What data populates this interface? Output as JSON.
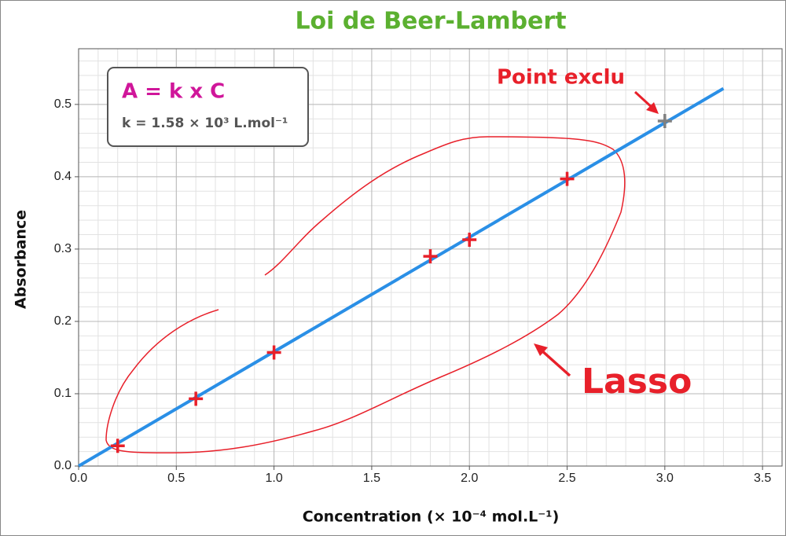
{
  "chart_data": {
    "type": "scatter",
    "title": "Loi de Beer-Lambert",
    "x_label": "Concentration (× 10⁻⁴ mol.L⁻¹)",
    "y_label": "Absorbance",
    "xlim": [
      0,
      3.6
    ],
    "ylim": [
      0,
      0.577
    ],
    "xticks": [
      {
        "value": 0,
        "label": "0.0"
      },
      {
        "value": 0.5,
        "label": "0.5"
      },
      {
        "value": 1,
        "label": "1.0"
      },
      {
        "value": 1.5,
        "label": "1.5"
      },
      {
        "value": 2,
        "label": "2.0"
      },
      {
        "value": 2.5,
        "label": "2.5"
      },
      {
        "value": 3,
        "label": "3.0"
      },
      {
        "value": 3.5,
        "label": "3.5"
      }
    ],
    "yticks": [
      {
        "value": 0,
        "label": "0.0"
      },
      {
        "value": 0.1,
        "label": "0.1"
      },
      {
        "value": 0.2,
        "label": "0.2"
      },
      {
        "value": 0.3,
        "label": "0.3"
      },
      {
        "value": 0.4,
        "label": "0.4"
      },
      {
        "value": 0.5,
        "label": "0.5"
      }
    ],
    "grid": true,
    "points": {
      "x": [
        0.2,
        0.6,
        1.0,
        1.8,
        2.0,
        2.5
      ],
      "values": [
        0.028,
        0.093,
        0.157,
        0.29,
        0.313,
        0.397
      ],
      "color": "#e8202a"
    },
    "excluded": {
      "x": [
        3.0
      ],
      "values": [
        0.477
      ],
      "color": "#808080"
    },
    "fit_line": {
      "x": [
        0,
        3.3
      ],
      "values": [
        0,
        0.522
      ],
      "color": "#2a8fe6"
    },
    "equation": "A = k x C",
    "coefficient": "k = 1.58 × 10³ L.mol⁻¹",
    "annotations": [
      "Point exclu",
      "Lasso"
    ]
  }
}
